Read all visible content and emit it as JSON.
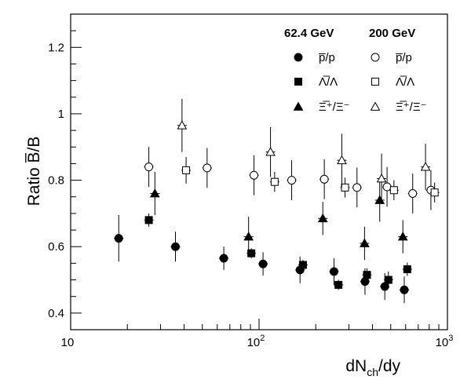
{
  "chart_data": {
    "type": "scatter",
    "title": "",
    "xlabel": "dN_ch/dy",
    "xlabel_main": "dN",
    "xlabel_sub": "ch",
    "xlabel_tail": "/dy",
    "ylabel": "Ratio B̅/B",
    "xscale": "log",
    "xlim": [
      10,
      1000
    ],
    "ylim": [
      0.35,
      1.3
    ],
    "x_ticks": [
      {
        "value": 10,
        "base": "10",
        "exp": ""
      },
      {
        "value": 100,
        "base": "10",
        "exp": "2"
      },
      {
        "value": 1000,
        "base": "10",
        "exp": "3"
      }
    ],
    "y_ticks": [
      {
        "value": 0.4,
        "label": "0.4"
      },
      {
        "value": 0.6,
        "label": "0.6"
      },
      {
        "value": 0.8,
        "label": "0.8"
      },
      {
        "value": 1.0,
        "label": "1"
      },
      {
        "value": 1.2,
        "label": "1.2"
      }
    ],
    "grid": false,
    "legend_position": "top-right",
    "legend_headers": [
      "62.4 GeV",
      "200 GeV"
    ],
    "legend_rows": [
      "p̅/p",
      "Λ̅/Λ",
      "Ξ̅⁺/Ξ⁻"
    ],
    "series": [
      {
        "name": "p̅/p",
        "energy": "62.4 GeV",
        "marker": "circle",
        "filled": true,
        "points": [
          {
            "x": 18,
            "y": 0.625,
            "err": 0.07
          },
          {
            "x": 36,
            "y": 0.6,
            "err": 0.045
          },
          {
            "x": 65,
            "y": 0.565,
            "err": 0.035
          },
          {
            "x": 105,
            "y": 0.548,
            "err": 0.035
          },
          {
            "x": 165,
            "y": 0.53,
            "err": 0.04
          },
          {
            "x": 250,
            "y": 0.525,
            "err": 0.04
          },
          {
            "x": 365,
            "y": 0.495,
            "err": 0.04
          },
          {
            "x": 465,
            "y": 0.48,
            "err": 0.04
          },
          {
            "x": 590,
            "y": 0.47,
            "err": 0.04
          }
        ]
      },
      {
        "name": "Λ̅/Λ",
        "energy": "62.4 GeV",
        "marker": "square",
        "filled": true,
        "points": [
          {
            "x": 26,
            "y": 0.68,
            "err": 0.02
          },
          {
            "x": 91,
            "y": 0.58,
            "err": 0.015
          },
          {
            "x": 171,
            "y": 0.545,
            "err": 0.015
          },
          {
            "x": 264,
            "y": 0.485,
            "err": 0.015
          },
          {
            "x": 374,
            "y": 0.515,
            "err": 0.02
          },
          {
            "x": 486,
            "y": 0.5,
            "err": 0.025
          },
          {
            "x": 612,
            "y": 0.532,
            "err": 0.02
          }
        ]
      },
      {
        "name": "Ξ̅⁺/Ξ⁻",
        "energy": "62.4 GeV",
        "marker": "triangle",
        "filled": true,
        "points": [
          {
            "x": 28,
            "y": 0.76,
            "err": 0.065
          },
          {
            "x": 88,
            "y": 0.63,
            "err": 0.06
          },
          {
            "x": 218,
            "y": 0.685,
            "err": 0.05
          },
          {
            "x": 363,
            "y": 0.61,
            "err": 0.05
          },
          {
            "x": 437,
            "y": 0.74,
            "err": 0.065
          },
          {
            "x": 580,
            "y": 0.63,
            "err": 0.05
          }
        ]
      },
      {
        "name": "p̅/p",
        "energy": "200 GeV",
        "marker": "circle",
        "filled": false,
        "points": [
          {
            "x": 26,
            "y": 0.84,
            "err": 0.06
          },
          {
            "x": 53,
            "y": 0.837,
            "err": 0.06
          },
          {
            "x": 94,
            "y": 0.815,
            "err": 0.06
          },
          {
            "x": 149,
            "y": 0.8,
            "err": 0.06
          },
          {
            "x": 222,
            "y": 0.803,
            "err": 0.06
          },
          {
            "x": 331,
            "y": 0.778,
            "err": 0.06
          },
          {
            "x": 478,
            "y": 0.78,
            "err": 0.06
          },
          {
            "x": 654,
            "y": 0.76,
            "err": 0.06
          },
          {
            "x": 817,
            "y": 0.77,
            "err": 0.06
          }
        ]
      },
      {
        "name": "Λ̅/Λ",
        "energy": "200 GeV",
        "marker": "square",
        "filled": false,
        "points": [
          {
            "x": 41,
            "y": 0.83,
            "err": 0.04
          },
          {
            "x": 121,
            "y": 0.795,
            "err": 0.03
          },
          {
            "x": 286,
            "y": 0.778,
            "err": 0.03
          },
          {
            "x": 520,
            "y": 0.77,
            "err": 0.03
          },
          {
            "x": 855,
            "y": 0.763,
            "err": 0.03
          }
        ]
      },
      {
        "name": "Ξ̅⁺/Ξ⁻",
        "energy": "200 GeV",
        "marker": "triangle",
        "filled": false,
        "points": [
          {
            "x": 39,
            "y": 0.965,
            "err": 0.08
          },
          {
            "x": 115,
            "y": 0.885,
            "err": 0.075
          },
          {
            "x": 275,
            "y": 0.86,
            "err": 0.08
          },
          {
            "x": 447,
            "y": 0.805,
            "err": 0.075
          },
          {
            "x": 765,
            "y": 0.84,
            "err": 0.07
          }
        ]
      }
    ]
  }
}
